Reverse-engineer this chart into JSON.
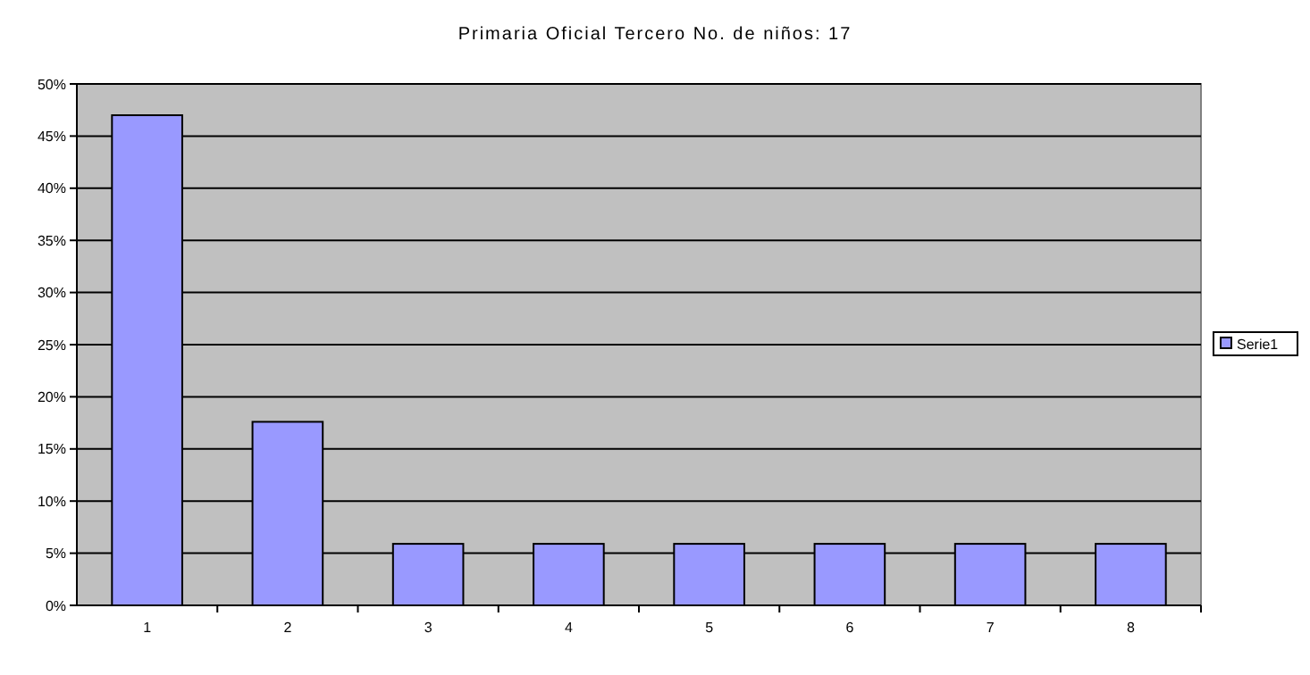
{
  "chart_data": {
    "type": "bar",
    "title": "Primaria Oficial Tercero No. de niños: 17",
    "categories": [
      "1",
      "2",
      "3",
      "4",
      "5",
      "6",
      "7",
      "8"
    ],
    "series": [
      {
        "name": "Serie1",
        "color": "#9999ff",
        "values": [
          47,
          17.6,
          5.9,
          5.9,
          5.9,
          5.9,
          5.9,
          5.9
        ]
      }
    ],
    "ylim": [
      0,
      50
    ],
    "yticks": [
      {
        "value": 0,
        "label": "0%"
      },
      {
        "value": 5,
        "label": "5%"
      },
      {
        "value": 10,
        "label": "10%"
      },
      {
        "value": 15,
        "label": "15%"
      },
      {
        "value": 20,
        "label": "20%"
      },
      {
        "value": 25,
        "label": "25%"
      },
      {
        "value": 30,
        "label": "30%"
      },
      {
        "value": 35,
        "label": "35%"
      },
      {
        "value": 40,
        "label": "40%"
      },
      {
        "value": 45,
        "label": "45%"
      },
      {
        "value": 50,
        "label": "50%"
      }
    ],
    "grid": "y",
    "legend": "right"
  }
}
